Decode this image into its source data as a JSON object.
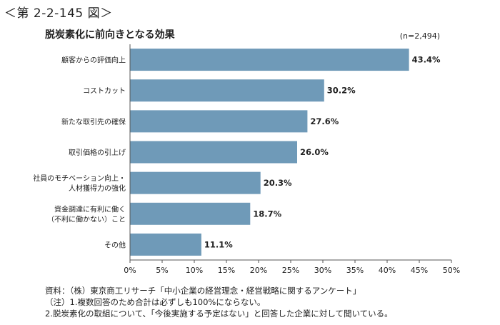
{
  "figure_number": "＜第 2-2-145 図＞",
  "chart_data": {
    "type": "bar",
    "orientation": "horizontal",
    "title": "脱炭素化に前向きとなる効果",
    "sample_size": "(n=2,494)",
    "categories": [
      [
        "顧客からの評価向上"
      ],
      [
        "コストカット"
      ],
      [
        "新たな取引先の確保"
      ],
      [
        "取引価格の引上げ"
      ],
      [
        "社員のモチベーション向上・",
        "人材獲得力の強化"
      ],
      [
        "資金調達に有利に働く",
        "（不利に働かない）こと"
      ],
      [
        "その他"
      ]
    ],
    "values": [
      43.4,
      30.2,
      27.6,
      26.0,
      20.3,
      18.7,
      11.1
    ],
    "value_labels": [
      "43.4%",
      "30.2%",
      "27.6%",
      "26.0%",
      "20.3%",
      "18.7%",
      "11.1%"
    ],
    "x_ticks": [
      "0%",
      "5%",
      "10%",
      "15%",
      "20%",
      "25%",
      "30%",
      "35%",
      "40%",
      "45%",
      "50%"
    ],
    "xlim": [
      0,
      50
    ],
    "bar_color": "#6f9ab8",
    "grid": false
  },
  "notes": [
    "資料：（株）東京商工リサーチ「中小企業の経営理念・経営戦略に関するアンケート」",
    "（注）1.複数回答のため合計は必ずしも100%にならない。",
    "2.脱炭素化の取組について、「今後実施する予定はない」と回答した企業に対して聞いている。"
  ]
}
